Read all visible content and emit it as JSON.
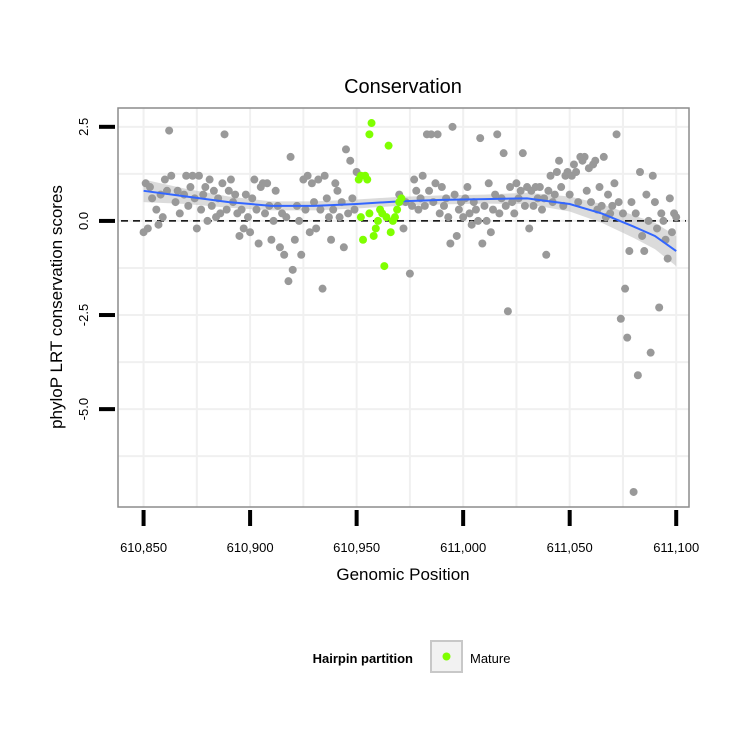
{
  "chart_data": {
    "type": "scatter",
    "title": "Conservation",
    "xlabel": "Genomic Position",
    "ylabel": "phyloP LRT conservation scores",
    "xlim": [
      610838,
      611106
    ],
    "ylim": [
      -7.6,
      3.0
    ],
    "x_ticks": [
      610850,
      610900,
      610950,
      611000,
      611050,
      611100
    ],
    "x_tick_labels": [
      "610,850",
      "610,900",
      "610,950",
      "611,000",
      "611,050",
      "611,100"
    ],
    "y_ticks": [
      2.5,
      0.0,
      -2.5,
      -5.0
    ],
    "y_tick_labels": [
      "2.5",
      "0.0",
      "-2.5",
      "-5.0"
    ],
    "reference_line_y": 0,
    "grid": true,
    "colors": {
      "background_points": "#999999",
      "mature": "#7fff00",
      "smooth_line": "#3366ff",
      "ribbon": "#bebebe",
      "grid": "#f0f0f0",
      "panel_border": "#8c8c8c"
    },
    "legend": {
      "title": "Hairpin partition",
      "position": "bottom",
      "entries": [
        {
          "label": "Mature",
          "color": "#7fff00"
        }
      ]
    },
    "smooth": {
      "x": [
        610850,
        610870,
        610890,
        610910,
        610930,
        610950,
        610970,
        610990,
        611010,
        611030,
        611050,
        611065,
        611080,
        611090,
        611100
      ],
      "y": [
        0.8,
        0.65,
        0.5,
        0.4,
        0.4,
        0.45,
        0.52,
        0.56,
        0.58,
        0.6,
        0.45,
        0.2,
        -0.15,
        -0.4,
        -0.8
      ],
      "band": [
        0.3,
        0.2,
        0.15,
        0.12,
        0.12,
        0.12,
        0.12,
        0.12,
        0.12,
        0.15,
        0.2,
        0.25,
        0.3,
        0.35,
        0.4
      ]
    },
    "series": [
      {
        "name": "background",
        "points": [
          [
            610850,
            -0.3
          ],
          [
            610851,
            1.0
          ],
          [
            610852,
            -0.2
          ],
          [
            610853,
            0.9
          ],
          [
            610854,
            0.6
          ],
          [
            610856,
            0.3
          ],
          [
            610857,
            -0.1
          ],
          [
            610858,
            0.7
          ],
          [
            610859,
            0.1
          ],
          [
            610860,
            1.1
          ],
          [
            610861,
            0.8
          ],
          [
            610862,
            2.4
          ],
          [
            610863,
            1.2
          ],
          [
            610865,
            0.5
          ],
          [
            610866,
            0.8
          ],
          [
            610867,
            0.2
          ],
          [
            610869,
            0.7
          ],
          [
            610870,
            1.2
          ],
          [
            610871,
            0.4
          ],
          [
            610872,
            0.9
          ],
          [
            610873,
            1.2
          ],
          [
            610874,
            0.6
          ],
          [
            610875,
            -0.2
          ],
          [
            610876,
            1.2
          ],
          [
            610877,
            0.3
          ],
          [
            610878,
            0.7
          ],
          [
            610879,
            0.9
          ],
          [
            610880,
            0.0
          ],
          [
            610881,
            1.1
          ],
          [
            610882,
            0.4
          ],
          [
            610883,
            0.8
          ],
          [
            610884,
            0.1
          ],
          [
            610885,
            0.6
          ],
          [
            610886,
            0.2
          ],
          [
            610887,
            1.0
          ],
          [
            610888,
            2.3
          ],
          [
            610889,
            0.3
          ],
          [
            610890,
            0.8
          ],
          [
            610891,
            1.1
          ],
          [
            610892,
            0.5
          ],
          [
            610893,
            0.7
          ],
          [
            610894,
            0.2
          ],
          [
            610895,
            -0.4
          ],
          [
            610896,
            0.3
          ],
          [
            610897,
            -0.2
          ],
          [
            610898,
            0.7
          ],
          [
            610899,
            0.1
          ],
          [
            610900,
            -0.3
          ],
          [
            610901,
            0.6
          ],
          [
            610902,
            1.1
          ],
          [
            610903,
            0.3
          ],
          [
            610904,
            -0.6
          ],
          [
            610905,
            0.9
          ],
          [
            610906,
            1.0
          ],
          [
            610907,
            0.2
          ],
          [
            610908,
            1.0
          ],
          [
            610909,
            0.4
          ],
          [
            610910,
            -0.5
          ],
          [
            610911,
            0.0
          ],
          [
            610912,
            0.8
          ],
          [
            610913,
            0.4
          ],
          [
            610914,
            -0.7
          ],
          [
            610915,
            0.2
          ],
          [
            610916,
            -0.9
          ],
          [
            610917,
            0.1
          ],
          [
            610918,
            -1.6
          ],
          [
            610919,
            1.7
          ],
          [
            610920,
            -1.3
          ],
          [
            610921,
            -0.5
          ],
          [
            610922,
            0.4
          ],
          [
            610923,
            0.0
          ],
          [
            610924,
            -0.9
          ],
          [
            610925,
            1.1
          ],
          [
            610926,
            0.3
          ],
          [
            610927,
            1.2
          ],
          [
            610928,
            -0.3
          ],
          [
            610929,
            1.0
          ],
          [
            610930,
            0.5
          ],
          [
            610931,
            -0.2
          ],
          [
            610932,
            1.1
          ],
          [
            610933,
            0.3
          ],
          [
            610934,
            -1.8
          ],
          [
            610935,
            1.2
          ],
          [
            610936,
            0.6
          ],
          [
            610937,
            0.1
          ],
          [
            610938,
            -0.5
          ],
          [
            610939,
            0.3
          ],
          [
            610940,
            1.0
          ],
          [
            610941,
            0.8
          ],
          [
            610942,
            0.1
          ],
          [
            610943,
            0.5
          ],
          [
            610944,
            -0.7
          ],
          [
            610945,
            1.9
          ],
          [
            610946,
            0.2
          ],
          [
            610947,
            1.6
          ],
          [
            610948,
            0.6
          ],
          [
            610949,
            0.3
          ],
          [
            610950,
            1.3
          ],
          [
            610970,
            0.7
          ],
          [
            610972,
            -0.2
          ],
          [
            610973,
            0.5
          ],
          [
            610975,
            -1.4
          ],
          [
            610976,
            0.4
          ],
          [
            610977,
            1.1
          ],
          [
            610978,
            0.8
          ],
          [
            610979,
            0.3
          ],
          [
            610980,
            0.6
          ],
          [
            610981,
            1.2
          ],
          [
            610982,
            0.4
          ],
          [
            610983,
            2.3
          ],
          [
            610984,
            0.8
          ],
          [
            610985,
            2.3
          ],
          [
            610986,
            0.5
          ],
          [
            610987,
            1.0
          ],
          [
            610988,
            2.3
          ],
          [
            610989,
            0.2
          ],
          [
            610990,
            0.9
          ],
          [
            610991,
            0.4
          ],
          [
            610992,
            0.6
          ],
          [
            610993,
            0.1
          ],
          [
            610994,
            -0.6
          ],
          [
            610995,
            2.5
          ],
          [
            610996,
            0.7
          ],
          [
            610997,
            -0.4
          ],
          [
            610998,
            0.3
          ],
          [
            610999,
            0.5
          ],
          [
            611000,
            0.1
          ],
          [
            611001,
            0.6
          ],
          [
            611002,
            0.9
          ],
          [
            611003,
            0.2
          ],
          [
            611004,
            -0.1
          ],
          [
            611005,
            0.5
          ],
          [
            611006,
            0.3
          ],
          [
            611007,
            0.0
          ],
          [
            611008,
            2.2
          ],
          [
            611009,
            -0.6
          ],
          [
            611010,
            0.4
          ],
          [
            611011,
            0.0
          ],
          [
            611012,
            1.0
          ],
          [
            611013,
            -0.3
          ],
          [
            611014,
            0.3
          ],
          [
            611015,
            0.7
          ],
          [
            611016,
            2.3
          ],
          [
            611017,
            0.2
          ],
          [
            611018,
            0.6
          ],
          [
            611019,
            1.8
          ],
          [
            611020,
            0.4
          ],
          [
            611021,
            -2.4
          ],
          [
            611022,
            0.9
          ],
          [
            611023,
            0.5
          ],
          [
            611024,
            0.2
          ],
          [
            611025,
            1.0
          ],
          [
            611026,
            0.6
          ],
          [
            611027,
            0.8
          ],
          [
            611028,
            1.8
          ],
          [
            611029,
            0.4
          ],
          [
            611030,
            0.9
          ],
          [
            611031,
            -0.2
          ],
          [
            611032,
            0.8
          ],
          [
            611033,
            0.4
          ],
          [
            611034,
            0.9
          ],
          [
            611035,
            0.6
          ],
          [
            611036,
            0.9
          ],
          [
            611037,
            0.3
          ],
          [
            611038,
            0.6
          ],
          [
            611039,
            -0.9
          ],
          [
            611040,
            0.8
          ],
          [
            611041,
            1.2
          ],
          [
            611042,
            0.5
          ],
          [
            611043,
            0.7
          ],
          [
            611044,
            1.3
          ],
          [
            611045,
            1.6
          ],
          [
            611046,
            0.9
          ],
          [
            611047,
            0.4
          ],
          [
            611048,
            1.2
          ],
          [
            611049,
            1.3
          ],
          [
            611050,
            0.7
          ],
          [
            611051,
            1.2
          ],
          [
            611052,
            1.5
          ],
          [
            611053,
            1.3
          ],
          [
            611054,
            0.5
          ],
          [
            611055,
            1.7
          ],
          [
            611056,
            1.6
          ],
          [
            611057,
            1.7
          ],
          [
            611058,
            0.8
          ],
          [
            611059,
            1.4
          ],
          [
            611060,
            0.5
          ],
          [
            611061,
            1.5
          ],
          [
            611062,
            1.6
          ],
          [
            611063,
            0.3
          ],
          [
            611064,
            0.9
          ],
          [
            611065,
            0.4
          ],
          [
            611066,
            1.7
          ],
          [
            611067,
            0.1
          ],
          [
            611068,
            0.7
          ],
          [
            611069,
            0.2
          ],
          [
            611070,
            0.4
          ],
          [
            611071,
            1.0
          ],
          [
            611072,
            2.3
          ],
          [
            611073,
            0.5
          ],
          [
            611074,
            -2.6
          ],
          [
            611075,
            0.2
          ],
          [
            611076,
            -1.8
          ],
          [
            611077,
            -3.1
          ],
          [
            611078,
            -0.8
          ],
          [
            611079,
            0.5
          ],
          [
            611080,
            -7.2
          ],
          [
            611081,
            0.2
          ],
          [
            611082,
            -4.1
          ],
          [
            611083,
            1.3
          ],
          [
            611084,
            -0.4
          ],
          [
            611085,
            -0.8
          ],
          [
            611086,
            0.7
          ],
          [
            611087,
            0.0
          ],
          [
            611088,
            -3.5
          ],
          [
            611089,
            1.2
          ],
          [
            611090,
            0.5
          ],
          [
            611091,
            -0.2
          ],
          [
            611092,
            -2.3
          ],
          [
            611093,
            0.2
          ],
          [
            611094,
            0.0
          ],
          [
            611095,
            -0.5
          ],
          [
            611096,
            -1.0
          ],
          [
            611097,
            0.6
          ],
          [
            611098,
            -0.3
          ],
          [
            611099,
            0.2
          ],
          [
            611100,
            0.1
          ]
        ]
      },
      {
        "name": "Mature",
        "points": [
          [
            610951,
            1.1
          ],
          [
            610952,
            1.2
          ],
          [
            610952,
            0.1
          ],
          [
            610953,
            -0.5
          ],
          [
            610954,
            1.2
          ],
          [
            610955,
            1.1
          ],
          [
            610956,
            2.3
          ],
          [
            610956,
            0.2
          ],
          [
            610957,
            2.6
          ],
          [
            610958,
            -0.4
          ],
          [
            610959,
            -0.2
          ],
          [
            610960,
            0.0
          ],
          [
            610961,
            0.3
          ],
          [
            610962,
            0.2
          ],
          [
            610963,
            -1.2
          ],
          [
            610964,
            0.1
          ],
          [
            610965,
            2.0
          ],
          [
            610966,
            -0.3
          ],
          [
            610967,
            0.0
          ],
          [
            610968,
            0.1
          ],
          [
            610969,
            0.3
          ],
          [
            610970,
            0.5
          ],
          [
            610971,
            0.6
          ]
        ]
      }
    ]
  }
}
